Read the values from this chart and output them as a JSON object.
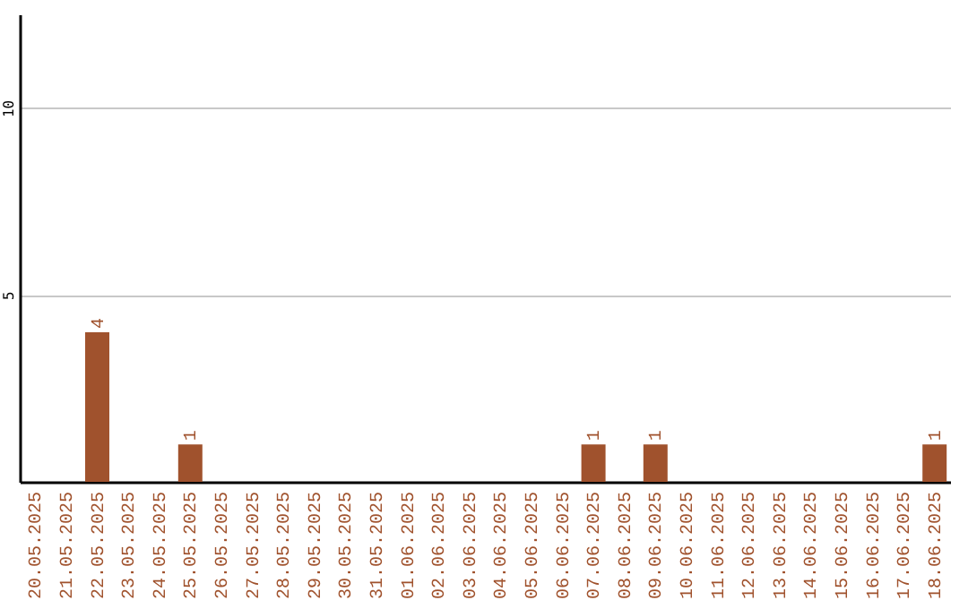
{
  "chart_data": {
    "type": "bar",
    "categories": [
      "20.05.2025",
      "21.05.2025",
      "22.05.2025",
      "23.05.2025",
      "24.05.2025",
      "25.05.2025",
      "26.05.2025",
      "27.05.2025",
      "28.05.2025",
      "29.05.2025",
      "30.05.2025",
      "31.05.2025",
      "01.06.2025",
      "02.06.2025",
      "03.06.2025",
      "04.06.2025",
      "05.06.2025",
      "06.06.2025",
      "07.06.2025",
      "08.06.2025",
      "09.06.2025",
      "10.06.2025",
      "11.06.2025",
      "12.06.2025",
      "13.06.2025",
      "14.06.2025",
      "15.06.2025",
      "16.06.2025",
      "17.06.2025",
      "18.06.2025"
    ],
    "values": [
      0,
      0,
      4,
      0,
      0,
      1,
      0,
      0,
      0,
      0,
      0,
      0,
      0,
      0,
      0,
      0,
      0,
      0,
      1,
      0,
      1,
      0,
      0,
      0,
      0,
      0,
      0,
      0,
      0,
      1
    ],
    "value_labels": [
      null,
      null,
      "4",
      null,
      null,
      "1",
      null,
      null,
      null,
      null,
      null,
      null,
      null,
      null,
      null,
      null,
      null,
      null,
      "1",
      null,
      "1",
      null,
      null,
      null,
      null,
      null,
      null,
      null,
      null,
      "1"
    ],
    "color": "#a0522d",
    "ylim": [
      0,
      12.5
    ],
    "yticks": [
      5,
      10
    ],
    "grid": "y"
  }
}
